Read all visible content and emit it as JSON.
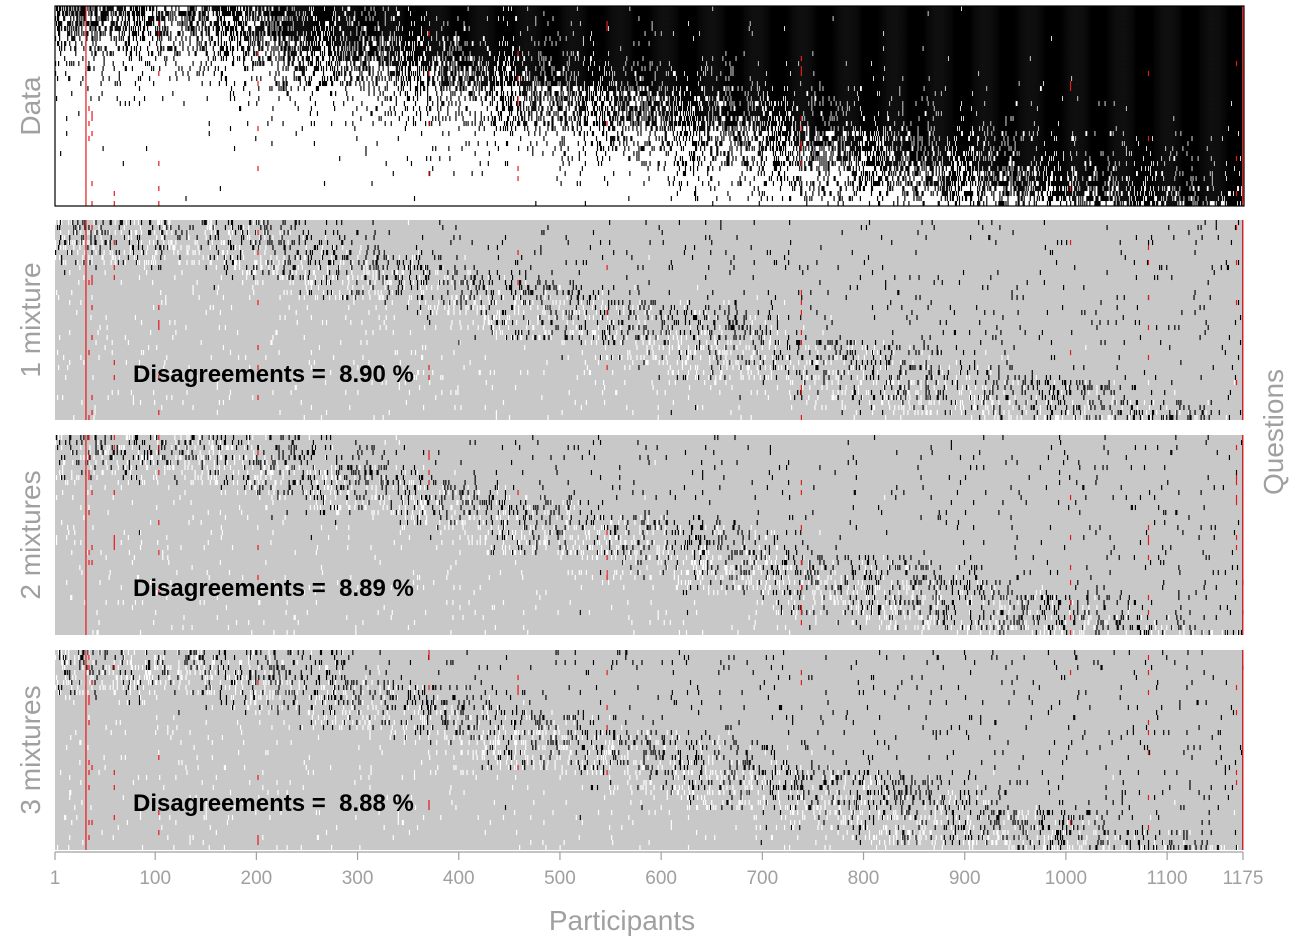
{
  "chart_data": {
    "type": "heatmap",
    "xlabel": "Participants",
    "ylabel": "Questions",
    "xlim": [
      1,
      1175
    ],
    "x_ticks": [
      1,
      100,
      200,
      300,
      400,
      500,
      600,
      700,
      800,
      900,
      1000,
      1100,
      1175
    ],
    "x_tick_labels": [
      "1",
      "100",
      "200",
      "300",
      "400",
      "500",
      "600",
      "700",
      "800",
      "900",
      "1000",
      "1100",
      "1175"
    ],
    "colors": {
      "positive": "#000000",
      "negative": "#ffffff",
      "model_background": "#c8c8c8",
      "missing": "#e31a1c",
      "axis_text": "#a0a0a0",
      "annotation": "#000000"
    },
    "panels": [
      {
        "label": "Data",
        "kind": "data",
        "background": "#ffffff",
        "annotation": ""
      },
      {
        "label": "1 mixture",
        "kind": "model",
        "background": "#c8c8c8",
        "annotation": "Disagreements =  8.90 %",
        "disagreement_percent": 8.9
      },
      {
        "label": "2 mixtures",
        "kind": "model",
        "background": "#c8c8c8",
        "annotation": "Disagreements =  8.89 %",
        "disagreement_percent": 8.89
      },
      {
        "label": "3 mixtures",
        "kind": "model",
        "background": "#c8c8c8",
        "annotation": "Disagreements =  8.88 %",
        "disagreement_percent": 8.88
      }
    ],
    "missing_columns": [
      31,
      34,
      37,
      59,
      103,
      201,
      370,
      458,
      546,
      738,
      1004,
      1081,
      1168,
      1174
    ]
  }
}
